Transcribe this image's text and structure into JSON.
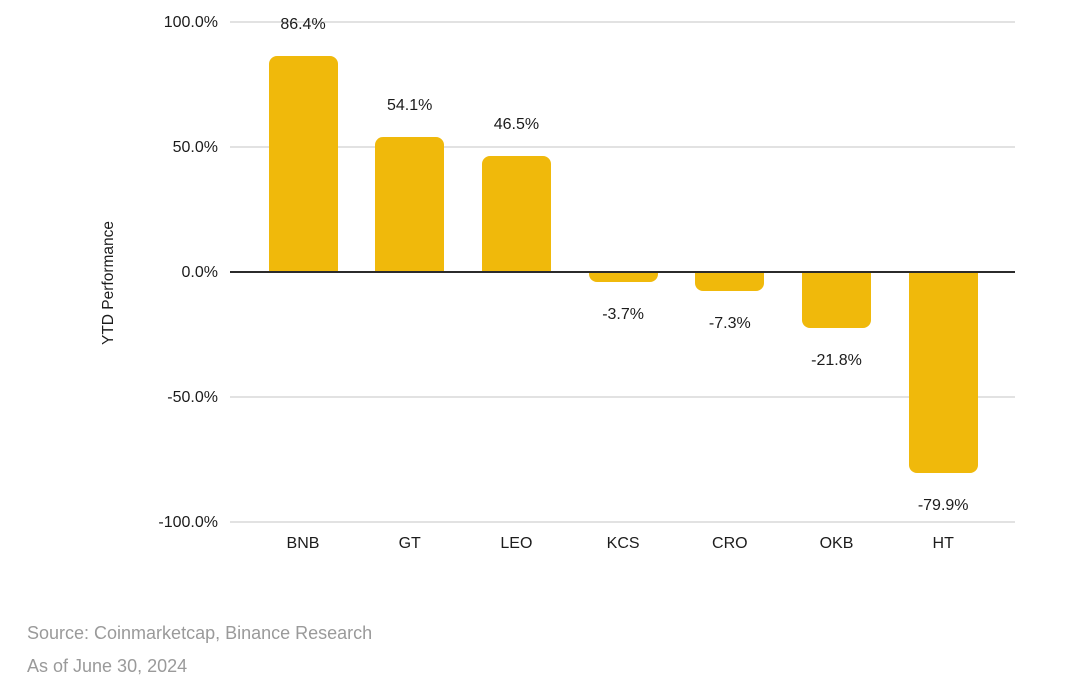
{
  "chart_data": {
    "type": "bar",
    "title": "",
    "categories": [
      "BNB",
      "GT",
      "LEO",
      "KCS",
      "CRO",
      "OKB",
      "HT"
    ],
    "values": [
      86.4,
      54.1,
      46.5,
      -3.7,
      -7.3,
      -21.8,
      -79.9
    ],
    "value_labels": [
      "86.4%",
      "54.1%",
      "46.5%",
      "-3.7%",
      "-7.3%",
      "-21.8%",
      "-79.9%"
    ],
    "xlabel": "",
    "ylabel": "YTD Performance",
    "ylim": [
      -100,
      100
    ],
    "yticks": [
      {
        "value": 100,
        "label": "100.0%"
      },
      {
        "value": 50,
        "label": "50.0%"
      },
      {
        "value": 0,
        "label": "0.0%"
      },
      {
        "value": -50,
        "label": "-50.0%"
      },
      {
        "value": -100,
        "label": "-100.0%"
      }
    ],
    "grid": true,
    "legend": false,
    "colors": {
      "bar": "#F0B90B",
      "axis_line": "#2b2b2b",
      "gridline": "#e2e2e2",
      "label_text": "#1c1c1c",
      "source_text": "#9a9a9a"
    }
  },
  "footer": {
    "source": "Source: Coinmarketcap, Binance Research",
    "as_of": "As of June 30, 2024"
  }
}
